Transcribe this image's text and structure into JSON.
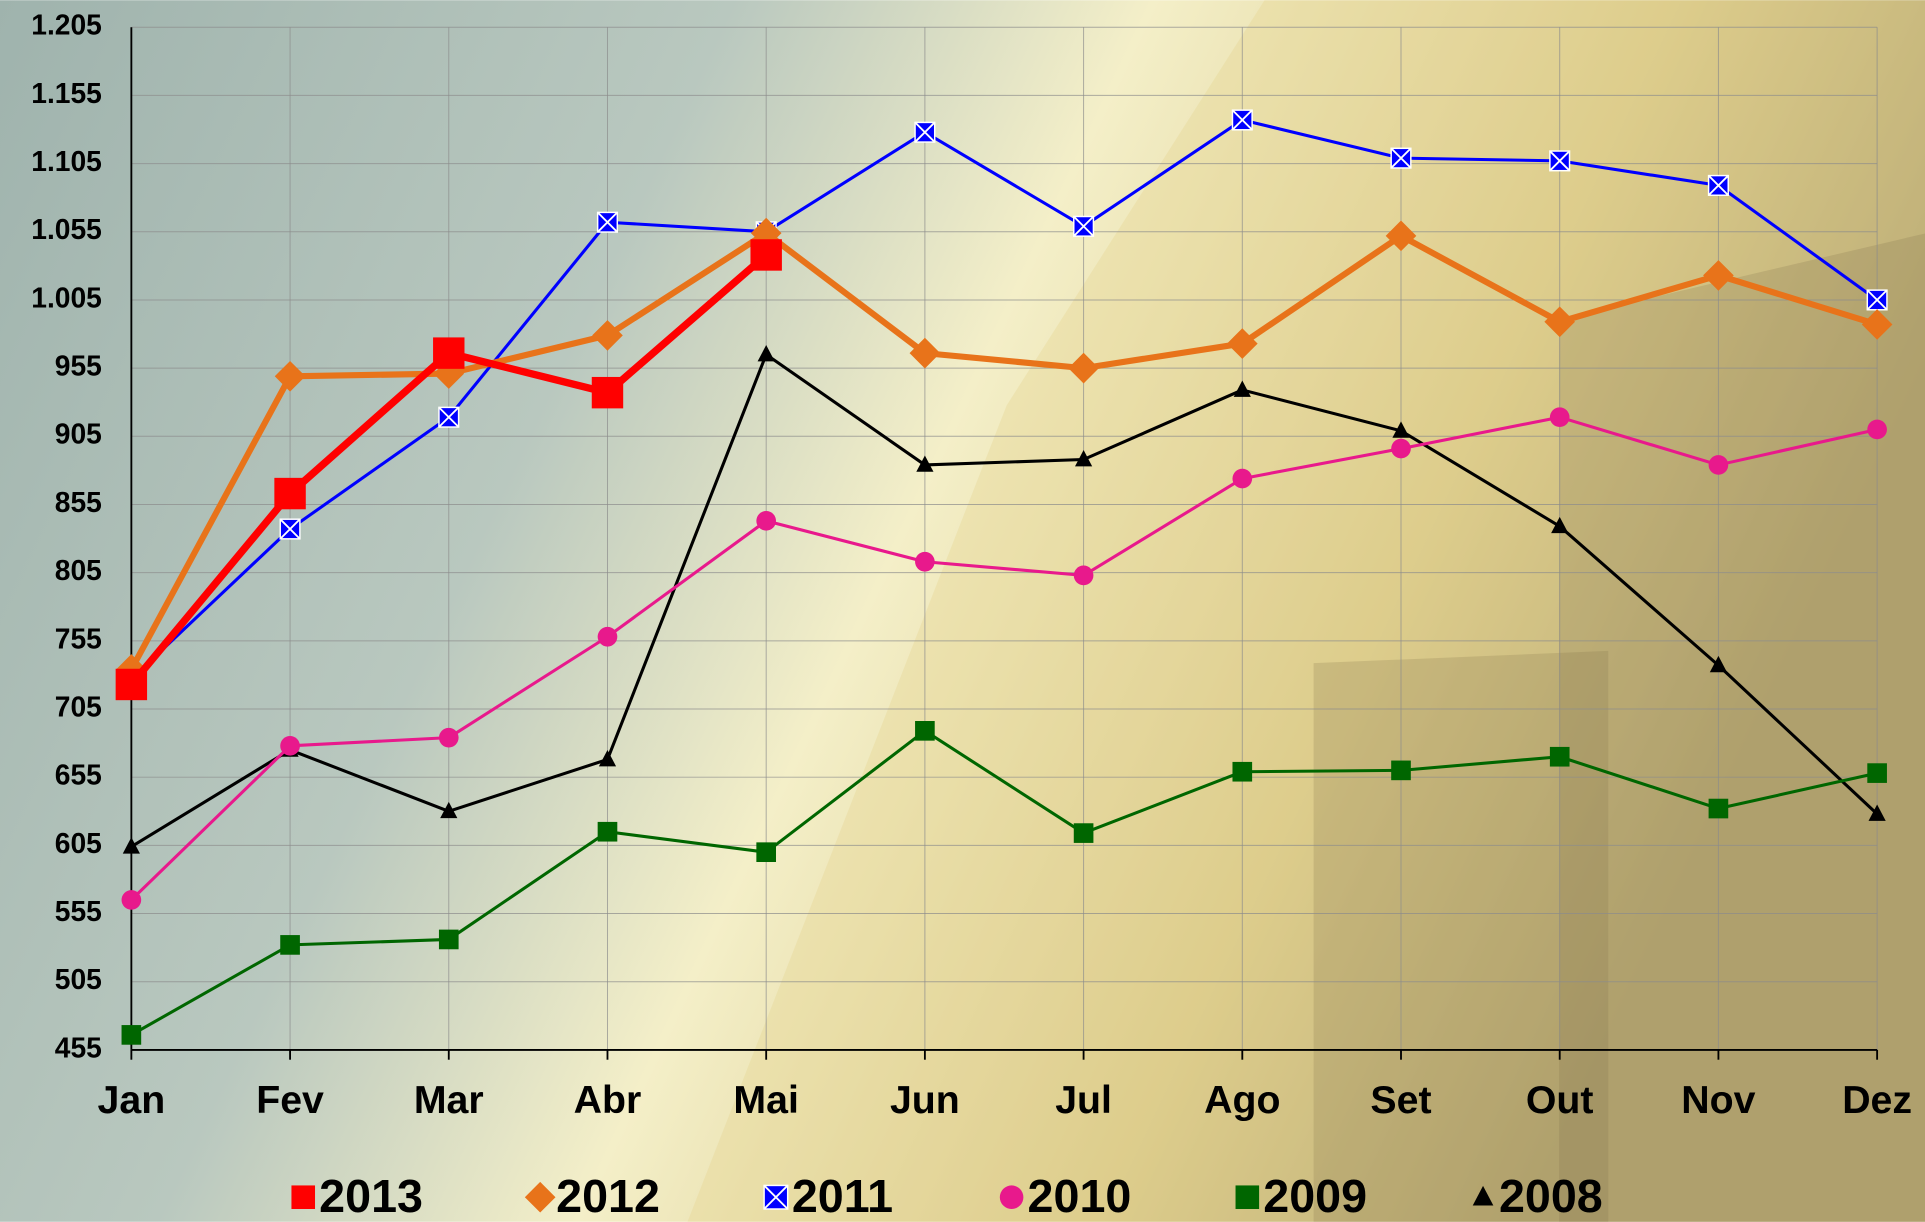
{
  "chart_data": {
    "type": "line",
    "categories": [
      "Jan",
      "Fev",
      "Mar",
      "Abr",
      "Mai",
      "Jun",
      "Jul",
      "Ago",
      "Set",
      "Out",
      "Nov",
      "Dez"
    ],
    "ylim": [
      455,
      1205
    ],
    "yticks": [
      {
        "value": 455,
        "label": "455"
      },
      {
        "value": 505,
        "label": "505"
      },
      {
        "value": 555,
        "label": "555"
      },
      {
        "value": 605,
        "label": "605"
      },
      {
        "value": 655,
        "label": "655"
      },
      {
        "value": 705,
        "label": "705"
      },
      {
        "value": 755,
        "label": "755"
      },
      {
        "value": 805,
        "label": "805"
      },
      {
        "value": 855,
        "label": "855"
      },
      {
        "value": 905,
        "label": "905"
      },
      {
        "value": 955,
        "label": "955"
      },
      {
        "value": 1005,
        "label": "1.005"
      },
      {
        "value": 1055,
        "label": "1.055"
      },
      {
        "value": 1105,
        "label": "1.105"
      },
      {
        "value": 1155,
        "label": "1.155"
      },
      {
        "value": 1205,
        "label": "1.205"
      }
    ],
    "grid": true,
    "series": [
      {
        "name": "2013",
        "color": "#ff0000",
        "marker": "square",
        "line_width": 6,
        "values": [
          723,
          863,
          966,
          937,
          1038,
          null,
          null,
          null,
          null,
          null,
          null,
          null
        ]
      },
      {
        "name": "2012",
        "color": "#e8731a",
        "marker": "diamond",
        "line_width": 5,
        "values": [
          734,
          949,
          951,
          979,
          1054,
          966,
          955,
          973,
          1052,
          989,
          1023,
          987
        ]
      },
      {
        "name": "2011",
        "color": "#0000ff",
        "marker": "xsquare",
        "line_width": 2.5,
        "values": [
          727,
          837,
          919,
          1062,
          1055,
          1128,
          1059,
          1137,
          1109,
          1107,
          1089,
          1005
        ]
      },
      {
        "name": "2010",
        "color": "#e8198c",
        "marker": "circle",
        "line_width": 2.5,
        "values": [
          565,
          678,
          684,
          758,
          843,
          813,
          803,
          874,
          896,
          919,
          884,
          910
        ]
      },
      {
        "name": "2009",
        "color": "#006600",
        "marker": "square",
        "line_width": 2.5,
        "values": [
          466,
          532,
          536,
          615,
          600,
          689,
          614,
          659,
          660,
          670,
          632,
          658
        ]
      },
      {
        "name": "2008",
        "color": "#000000",
        "marker": "triangle",
        "line_width": 2.5,
        "values": [
          604,
          675,
          630,
          668,
          965,
          884,
          888,
          939,
          909,
          839,
          737,
          628
        ]
      }
    ]
  }
}
